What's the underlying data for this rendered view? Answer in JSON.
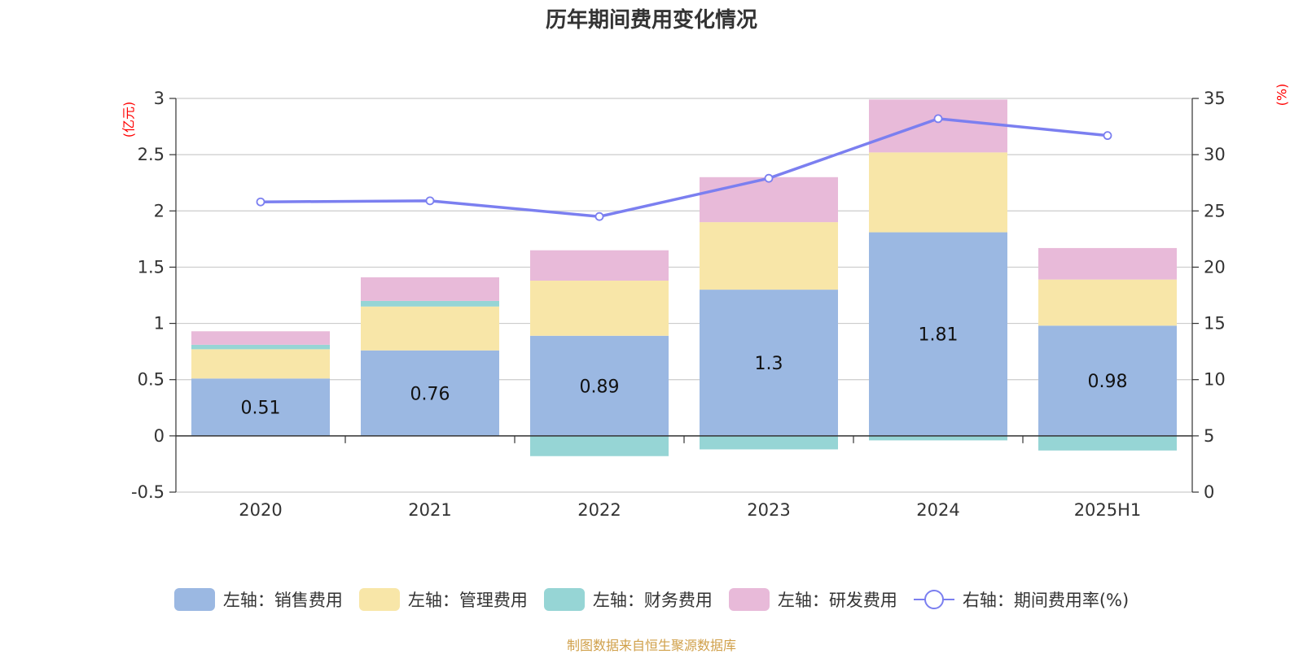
{
  "chart_data": {
    "type": "bar",
    "title": "历年期间费用变化情况",
    "source": "制图数据来自恒生聚源数据库",
    "categories": [
      "2020",
      "2021",
      "2022",
      "2023",
      "2024",
      "2025H1"
    ],
    "left_axis": {
      "unit": "(亿元)",
      "ylim": [
        -0.5,
        3
      ],
      "ticks": [
        "-0.5",
        "0",
        "0.5",
        "1",
        "1.5",
        "2",
        "2.5",
        "3"
      ]
    },
    "right_axis": {
      "unit": "(%)",
      "ylim": [
        0,
        35
      ],
      "ticks": [
        "0",
        "5",
        "10",
        "15",
        "20",
        "25",
        "30",
        "35"
      ]
    },
    "grid": true,
    "legend_position": "bottom",
    "series": [
      {
        "name": "左轴：销售费用",
        "color": "#9bb8e2",
        "values": [
          0.51,
          0.76,
          0.89,
          1.3,
          1.81,
          0.98
        ],
        "labels": [
          "0.51",
          "0.76",
          "0.89",
          "1.3",
          "1.81",
          "0.98"
        ]
      },
      {
        "name": "左轴：管理费用",
        "color": "#f8e6a8",
        "values": [
          0.26,
          0.39,
          0.49,
          0.6,
          0.71,
          0.41
        ]
      },
      {
        "name": "左轴：财务费用",
        "color": "#96d5d5",
        "values": [
          0.04,
          0.05,
          -0.18,
          -0.12,
          -0.04,
          -0.13
        ]
      },
      {
        "name": "左轴：研发费用",
        "color": "#e8bad9",
        "values": [
          0.12,
          0.21,
          0.27,
          0.4,
          0.47,
          0.28
        ]
      },
      {
        "name": "右轴：期间费用率(%)",
        "color": "#7b7ff0",
        "type": "line",
        "axis": "right",
        "values": [
          25.8,
          25.9,
          24.5,
          27.9,
          33.2,
          31.7
        ]
      }
    ]
  }
}
